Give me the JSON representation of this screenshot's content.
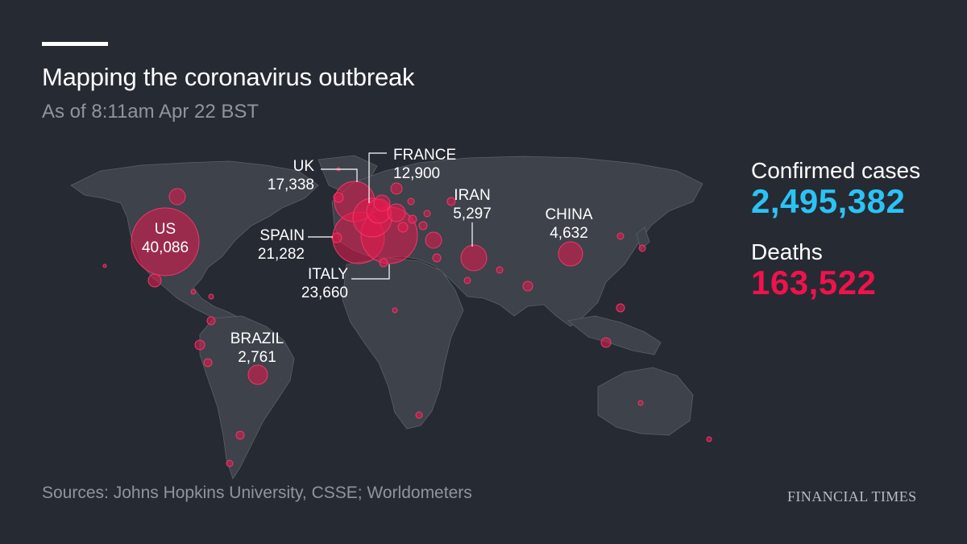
{
  "header": {
    "title": "Mapping the coronavirus outbreak",
    "subtitle": "As of 8:11am Apr 22 BST"
  },
  "stats": {
    "confirmed_label": "Confirmed cases",
    "confirmed_value": "2,495,382",
    "deaths_label": "Deaths",
    "deaths_value": "163,522"
  },
  "countries": {
    "us": {
      "name": "US",
      "deaths": "40,086"
    },
    "uk": {
      "name": "UK",
      "deaths": "17,338"
    },
    "france": {
      "name": "FRANCE",
      "deaths": "12,900"
    },
    "spain": {
      "name": "SPAIN",
      "deaths": "21,282"
    },
    "italy": {
      "name": "ITALY",
      "deaths": "23,660"
    },
    "iran": {
      "name": "IRAN",
      "deaths": "5,297"
    },
    "china": {
      "name": "CHINA",
      "deaths": "4,632"
    },
    "brazil": {
      "name": "BRAZIL",
      "deaths": "2,761"
    }
  },
  "footer": {
    "source": "Sources: Johns Hopkins University, CSSE;  Worldometers",
    "brand": "FINANCIAL TIMES"
  },
  "colors": {
    "background": "#262a33",
    "land": "#3d424b",
    "bubble": "#e8194f",
    "confirmed": "#2bc3f5",
    "deaths": "#f0124d"
  }
}
